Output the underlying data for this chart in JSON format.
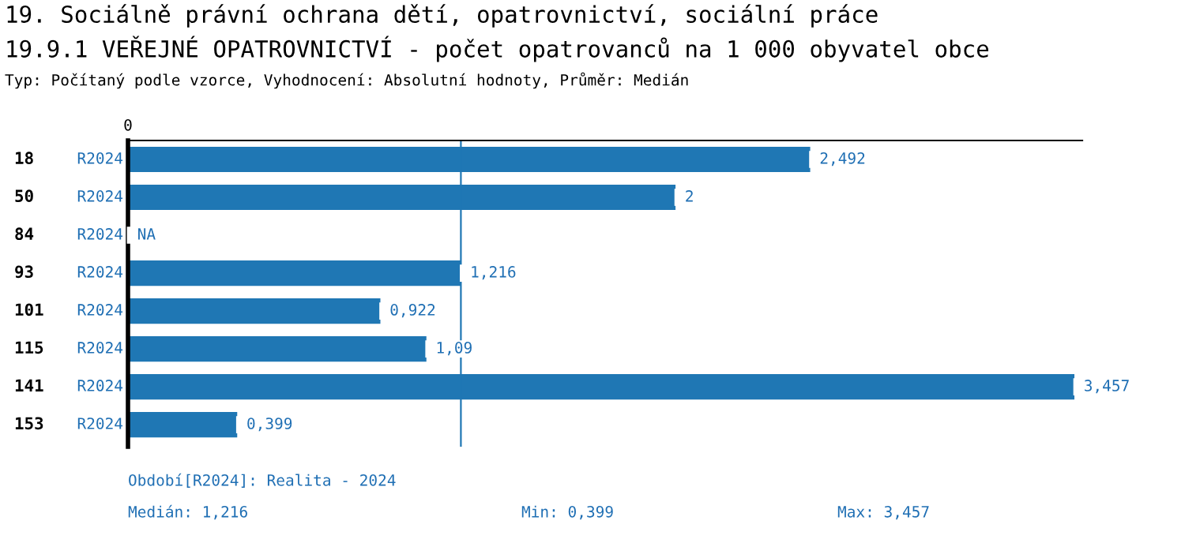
{
  "chart_data": {
    "type": "bar",
    "orientation": "horizontal",
    "title": "19. Sociálně právní ochrana dětí, opatrovnictví, sociální práce",
    "subtitle": "19.9.1 VEŘEJNÉ OPATROVNICTVÍ - počet opatrovanců na 1 000 obyvatel obce",
    "categories": [
      "18",
      "50",
      "84",
      "93",
      "101",
      "115",
      "141",
      "153"
    ],
    "series": [
      {
        "name": "R2024",
        "color": "#1f77b4",
        "values": [
          2.492,
          2,
          null,
          1.216,
          0.922,
          1.09,
          3.457,
          0.399
        ],
        "value_labels": [
          "2,492",
          "2",
          "NA",
          "1,216",
          "0,922",
          "1,09",
          "3,457",
          "0,399"
        ]
      }
    ],
    "legend": false,
    "ref_lines": [
      {
        "axis": "x",
        "value": 1.216,
        "color": "#1f77b4"
      }
    ],
    "annotations": [
      "0",
      "Typ: Počítaný podle vzorce, Vyhodnocení: Absolutní hodnoty, Průměr: Medián",
      "Období[R2024]: Realita - 2024",
      "Medián: 1,216",
      "Min: 0,399",
      "Max: 3,457"
    ]
  }
}
